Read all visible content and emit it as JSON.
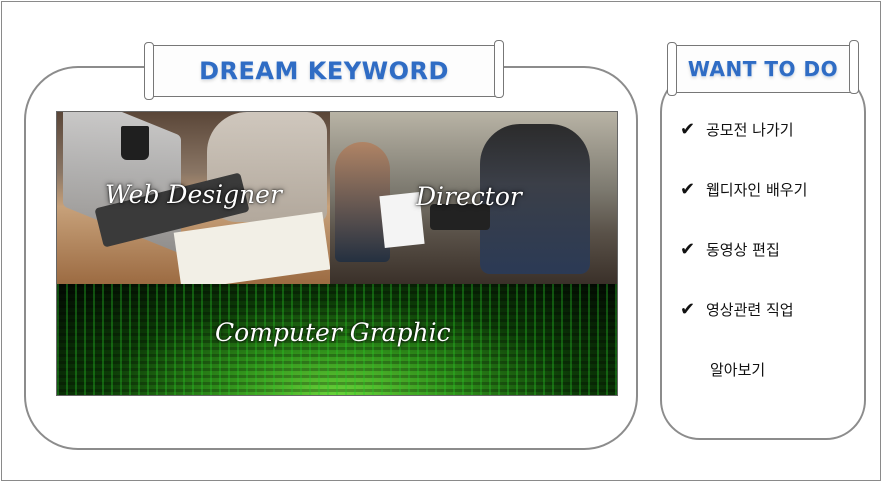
{
  "left_section": {
    "title": "DREAM KEYWORD",
    "tiles": [
      {
        "label": "Web Designer"
      },
      {
        "label": "Director"
      },
      {
        "label": "Computer Graphic"
      }
    ]
  },
  "right_section": {
    "title": "WANT TO DO",
    "items": [
      {
        "check": "✔",
        "text": "공모전 나가기"
      },
      {
        "check": "✔",
        "text": "웹디자인 배우기"
      },
      {
        "check": "✔",
        "text": "동영상 편집"
      },
      {
        "check": "✔",
        "text": "영상관련 직업"
      }
    ],
    "continuation": "알아보기"
  },
  "colors": {
    "title_blue": "#2f6cc4",
    "panel_border": "#8c8c8c"
  }
}
